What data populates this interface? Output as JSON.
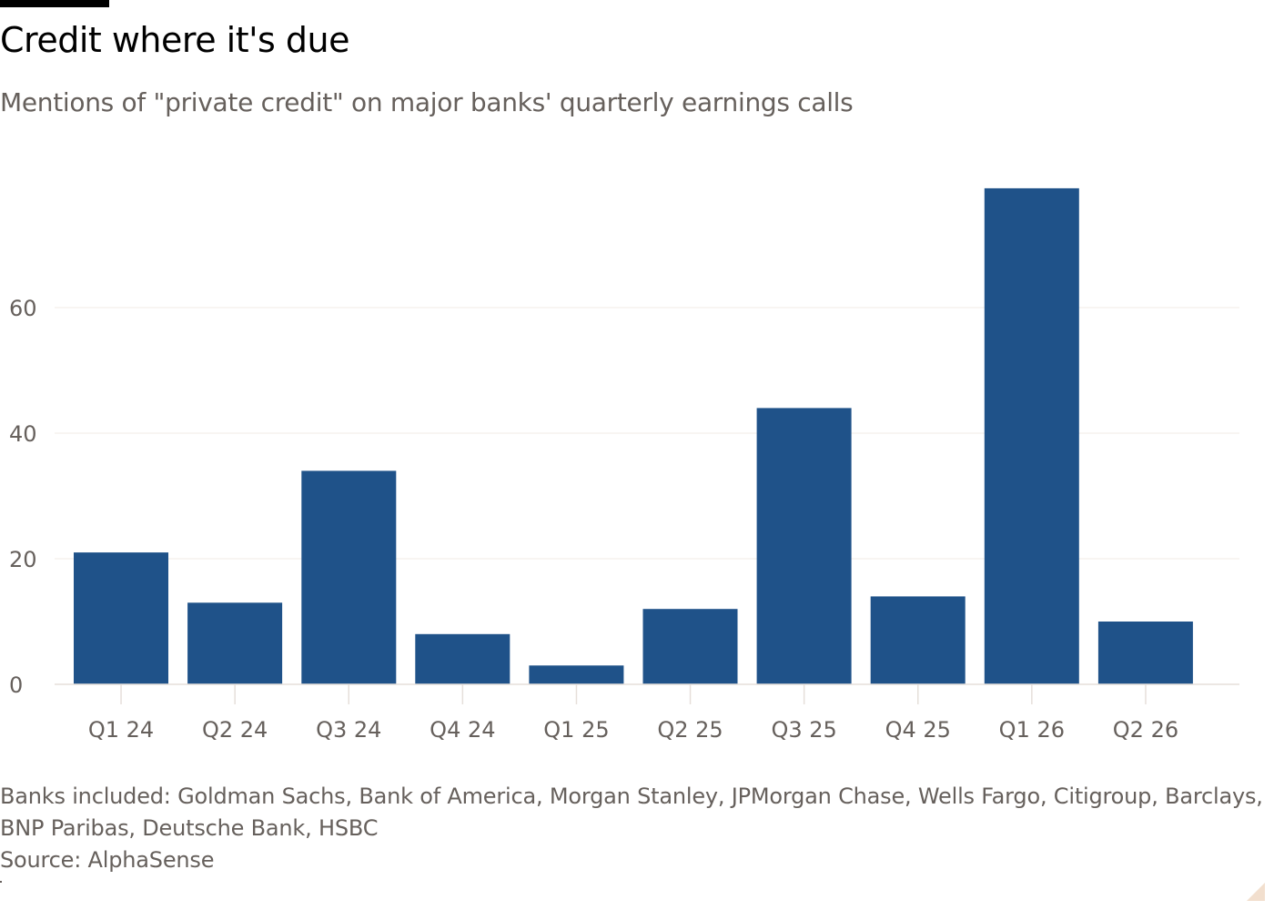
{
  "header": {
    "title": "Credit where it's due",
    "subtitle": "Mentions of \"private credit\" on major banks' quarterly earnings calls"
  },
  "footer": {
    "note": "Banks included: Goldman Sachs, Bank of America, Morgan Stanley, JPMorgan Chase, Wells Fargo, Citigroup, Barclays, BNP Paribas, Deutsche Bank, HSBC",
    "source": "Source: AlphaSense"
  },
  "colors": {
    "bar": "#1f5289",
    "text": "#66605c",
    "title": "#000000"
  },
  "chart_data": {
    "type": "bar",
    "title": "Credit where it's due",
    "subtitle": "Mentions of \"private credit\" on major banks' quarterly earnings calls",
    "xlabel": "",
    "ylabel": "",
    "categories": [
      "Q1 24",
      "Q2 24",
      "Q3 24",
      "Q4 24",
      "Q1 25",
      "Q2 25",
      "Q3 25",
      "Q4 25",
      "Q1 26",
      "Q2 26"
    ],
    "values": [
      21,
      13,
      34,
      8,
      3,
      12,
      44,
      14,
      79,
      10
    ],
    "yticks": [
      0,
      20,
      40,
      60
    ],
    "ylim": [
      0,
      80
    ],
    "grid": true,
    "legend": "none"
  }
}
